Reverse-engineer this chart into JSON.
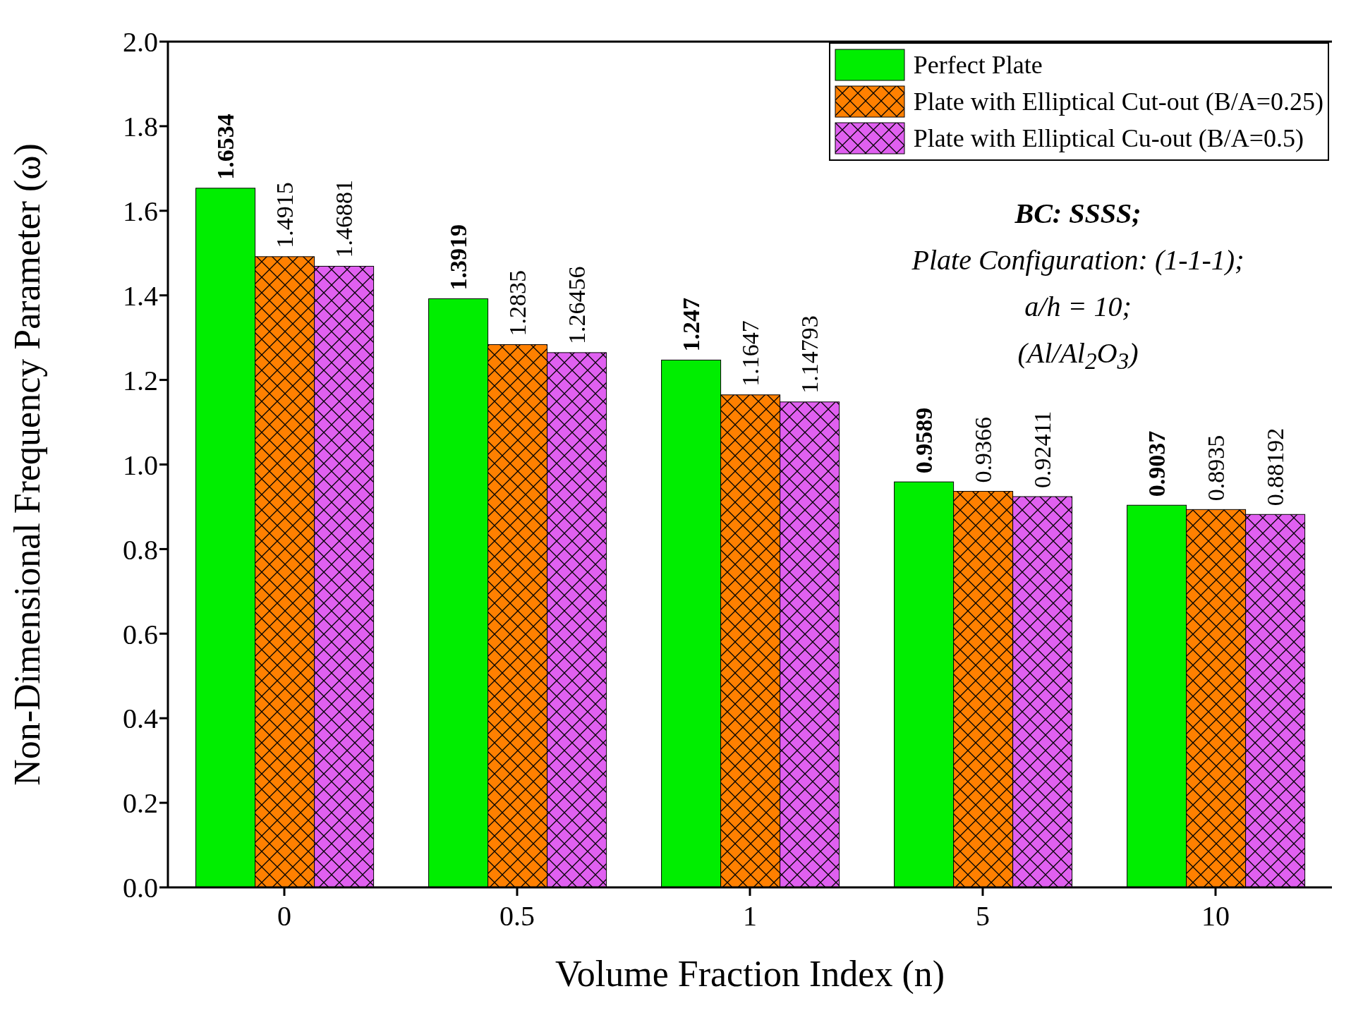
{
  "chart_data": {
    "type": "bar",
    "xlabel": "Volume Fraction Index (n)",
    "ylabel": "Non-Dimensional Frequency Parameter (ω)",
    "categories": [
      "0",
      "0.5",
      "1",
      "5",
      "10"
    ],
    "series": [
      {
        "name": "Perfect Plate",
        "color": "#00ee00",
        "values": [
          1.6534,
          1.3919,
          1.247,
          0.9589,
          0.9037
        ]
      },
      {
        "name": "Plate with Elliptical Cut-out (B/A=0.25)",
        "color": "#ff8000",
        "values": [
          1.4915,
          1.2835,
          1.1647,
          0.9366,
          0.8935
        ]
      },
      {
        "name": "Plate with Elliptical Cu-out (B/A=0.5)",
        "color": "#e060f0",
        "values": [
          1.46881,
          1.26456,
          1.14793,
          0.92411,
          0.88192
        ]
      }
    ],
    "ylim": [
      0,
      2.0
    ],
    "yticks": [
      {
        "value": 0,
        "label": "0.0"
      },
      {
        "value": 0.2,
        "label": "0.2"
      },
      {
        "value": 0.4,
        "label": "0.4"
      },
      {
        "value": 0.6,
        "label": "0.6"
      },
      {
        "value": 0.8,
        "label": "0.8"
      },
      {
        "value": 1.0,
        "label": "1.0"
      },
      {
        "value": 1.2,
        "label": "1.2"
      },
      {
        "value": 1.4,
        "label": "1.4"
      },
      {
        "value": 1.6,
        "label": "1.6"
      },
      {
        "value": 1.8,
        "label": "1.8"
      },
      {
        "value": 2.0,
        "label": "2.0"
      }
    ],
    "annotations": [
      "BC: SSSS;",
      "Plate Configuration: (1-1-1);",
      "a/h = 10;",
      "(Al/Al$_{2}$O$_{3}$)"
    ],
    "data_labels": true,
    "legend": "top right",
    "grid": false
  }
}
